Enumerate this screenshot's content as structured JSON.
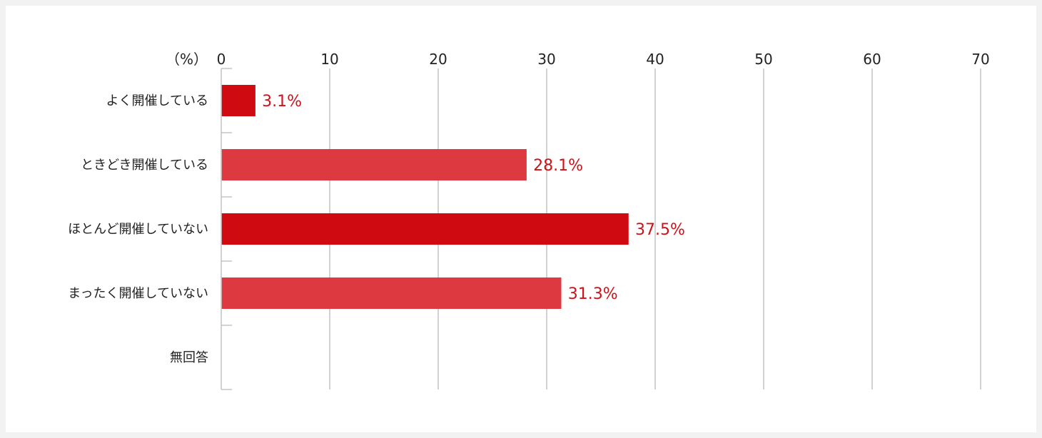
{
  "chart_data": {
    "type": "bar",
    "orientation": "horizontal",
    "unit_label": "（%）",
    "xlim": [
      0,
      70
    ],
    "x_ticks": [
      0,
      10,
      20,
      30,
      40,
      50,
      60,
      70
    ],
    "grid": true,
    "categories": [
      "よく開催している",
      "ときどき開催している",
      "ほとんど開催していない",
      "まったく開催していない",
      "無回答"
    ],
    "values": [
      3.1,
      28.1,
      37.5,
      31.3,
      null
    ],
    "value_labels": [
      "3.1%",
      "28.1%",
      "37.5%",
      "31.3%",
      ""
    ],
    "bar_colors": [
      "#cf0a10",
      "#dc3a40",
      "#cf0a10",
      "#dc3a40",
      "#dc3a40"
    ],
    "grid_color": "#c4c4c4",
    "label_color": "#cf1118"
  }
}
